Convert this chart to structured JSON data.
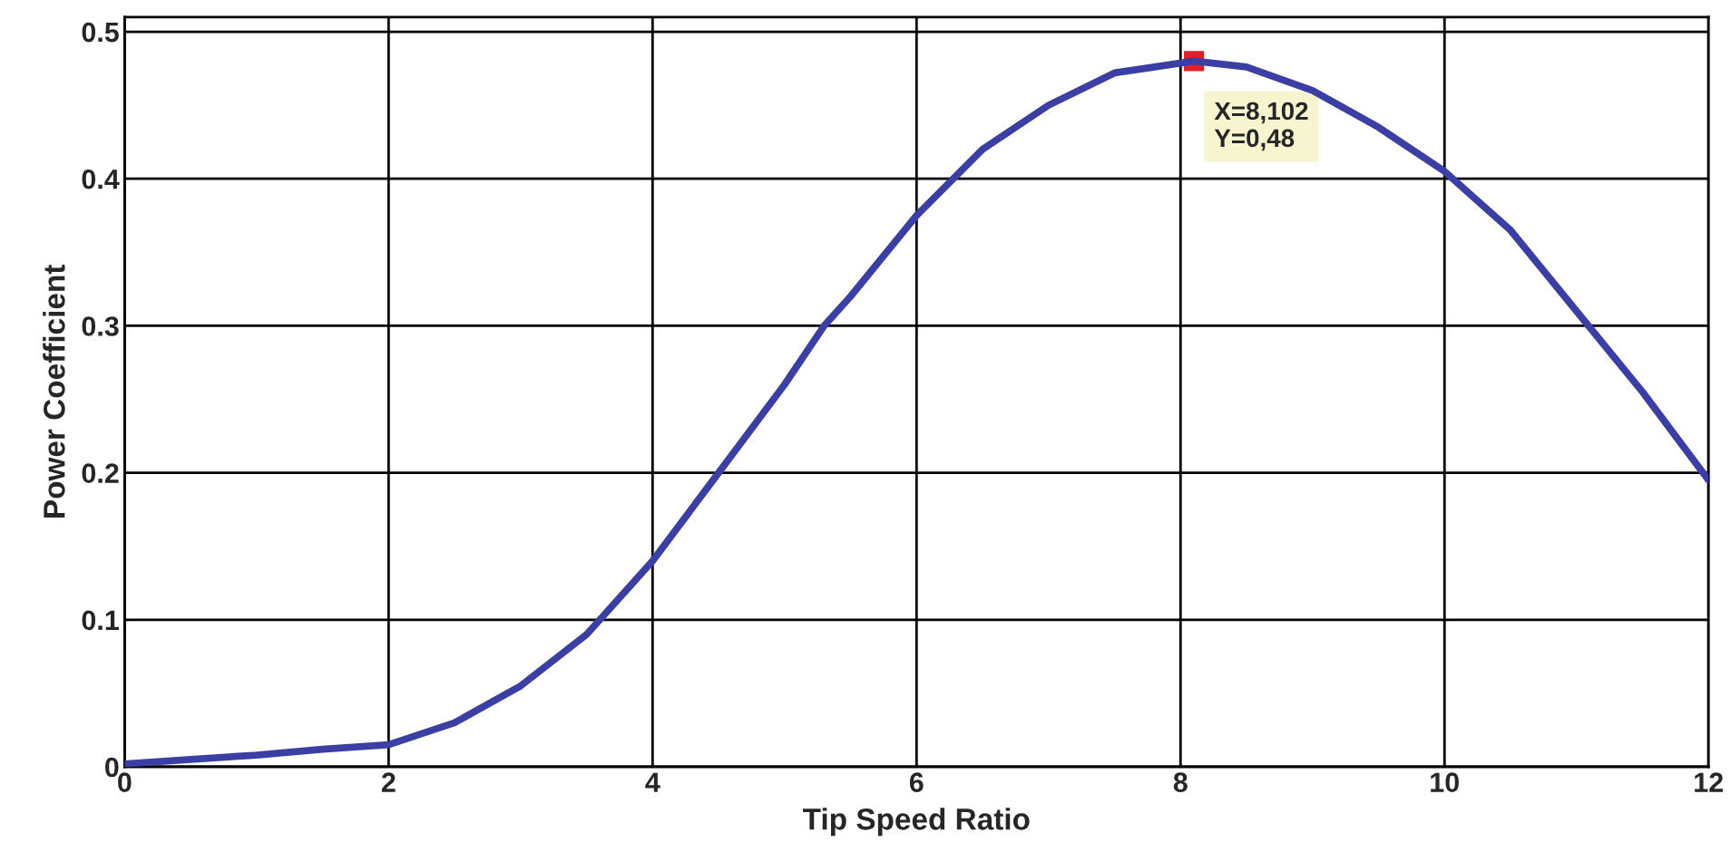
{
  "chart_data": {
    "type": "line",
    "xlabel": "Tip Speed Ratio",
    "ylabel": "Power Coefficient",
    "x": [
      0,
      0.5,
      1,
      1.5,
      2,
      2.5,
      3,
      3.5,
      4,
      4.5,
      5,
      5.3,
      5.5,
      6,
      6.5,
      7,
      7.5,
      8.102,
      8.5,
      9,
      9.5,
      10,
      10.5,
      11,
      11.5,
      12
    ],
    "series": [
      {
        "color": "#3b3fa3",
        "values": [
          0.002,
          0.005,
          0.008,
          0.012,
          0.015,
          0.03,
          0.055,
          0.09,
          0.14,
          0.2,
          0.26,
          0.3,
          0.32,
          0.375,
          0.42,
          0.45,
          0.472,
          0.48,
          0.476,
          0.46,
          0.435,
          0.405,
          0.365,
          0.31,
          0.255,
          0.195
        ]
      }
    ],
    "xlim": [
      0,
      12
    ],
    "ylim": [
      0,
      0.51
    ],
    "xticks": [
      0,
      2,
      4,
      6,
      8,
      10,
      12
    ],
    "yticks": [
      0,
      0.1,
      0.2,
      0.3,
      0.4,
      0.5
    ],
    "grid": true,
    "line_style": "solid",
    "marker": "none",
    "annotations": [
      {
        "text": "X=8,102\nY=0,48",
        "x": 8.102,
        "y": 0.48
      }
    ]
  }
}
